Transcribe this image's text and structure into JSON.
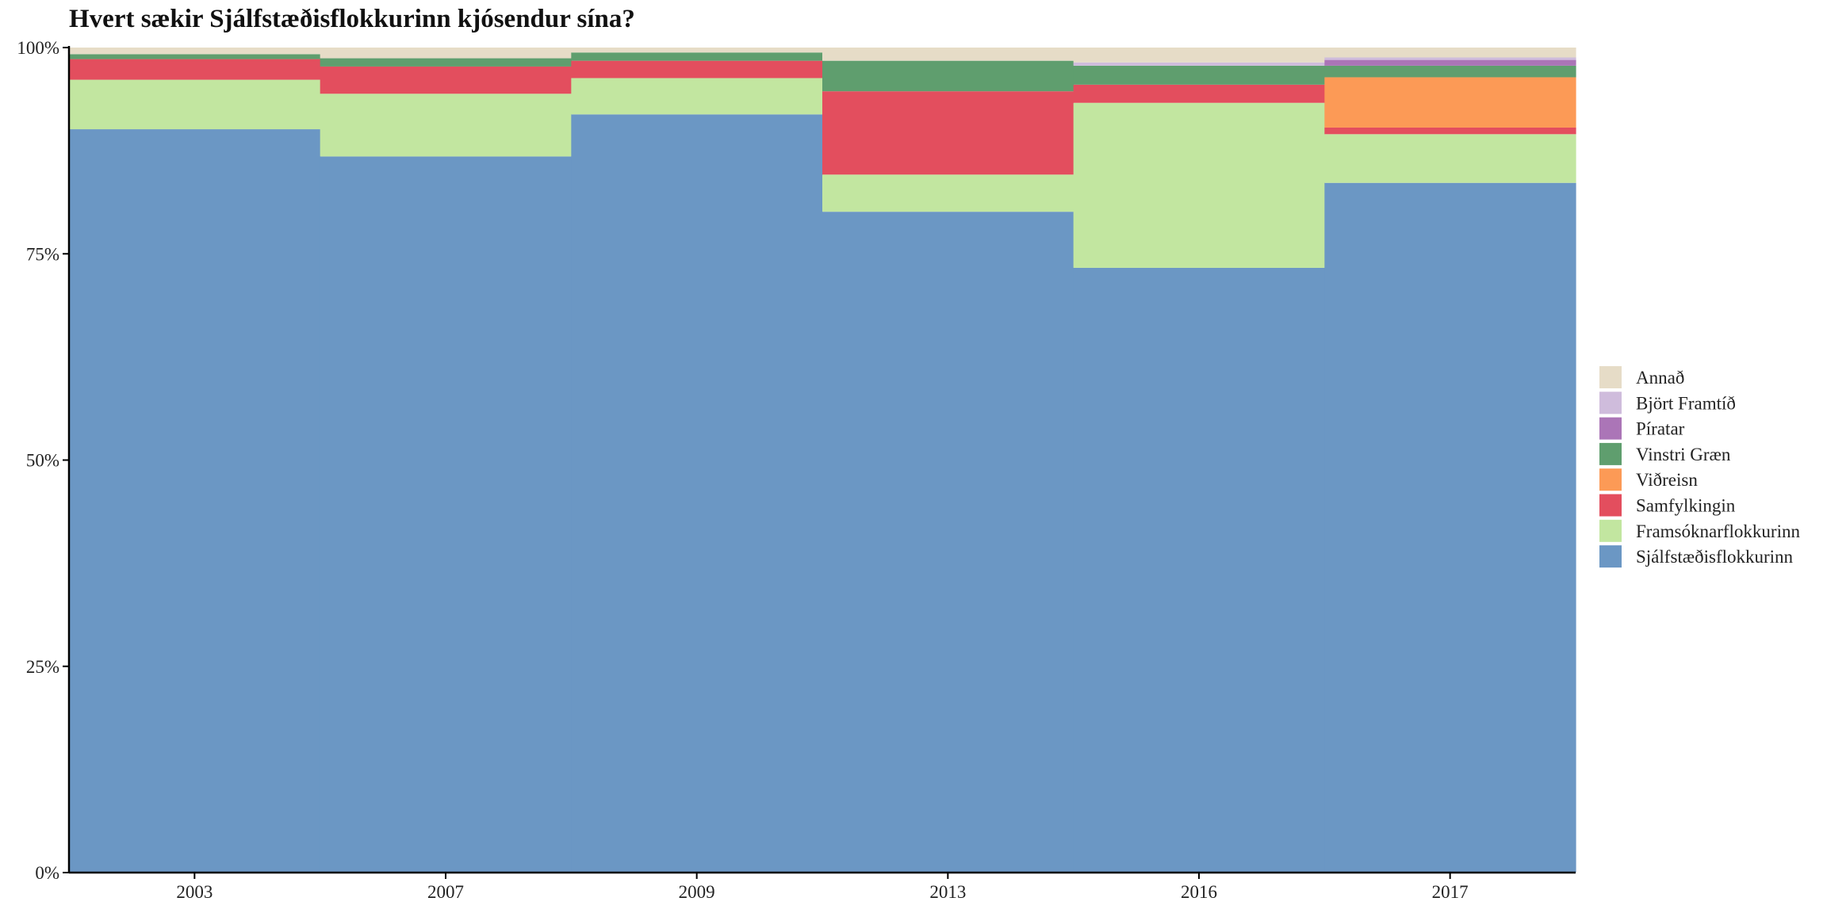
{
  "chart_data": {
    "type": "bar",
    "title": "Hvert sækir Sjálfstæðisflokkurinn kjósendur sína?",
    "xlabel": "",
    "ylabel": "",
    "ylim": [
      0,
      100
    ],
    "y_ticks": [
      "0%",
      "25%",
      "50%",
      "75%",
      "100%"
    ],
    "y_tick_values": [
      0,
      25,
      50,
      75,
      100
    ],
    "grid": false,
    "legend_position": "right",
    "categories": [
      "2003",
      "2007",
      "2009",
      "2013",
      "2016",
      "2017"
    ],
    "series": [
      {
        "name": "Sjálfstæðisflokkurinn",
        "color": "#6b97c4",
        "values": [
          90.1,
          86.8,
          91.9,
          80.1,
          73.3,
          83.6
        ]
      },
      {
        "name": "Framsóknarflokkurinn",
        "color": "#c2e6a0",
        "values": [
          6.0,
          7.6,
          4.4,
          4.5,
          20.0,
          5.9
        ]
      },
      {
        "name": "Samfylkingin",
        "color": "#e34e5e",
        "values": [
          2.5,
          3.3,
          2.1,
          10.1,
          2.2,
          0.8
        ]
      },
      {
        "name": "Viðreisn",
        "color": "#fc9a56",
        "values": [
          0,
          0,
          0,
          0,
          0,
          6.1
        ]
      },
      {
        "name": "Vinstri Græn",
        "color": "#5f9e6e",
        "values": [
          0.6,
          1.0,
          1.0,
          3.7,
          2.3,
          1.4
        ]
      },
      {
        "name": "Píratar",
        "color": "#ab75b7",
        "values": [
          0,
          0,
          0,
          0,
          0,
          0.7
        ]
      },
      {
        "name": "Björt Framtíð",
        "color": "#cfbcdc",
        "values": [
          0,
          0,
          0,
          0,
          0.4,
          0.3
        ]
      },
      {
        "name": "Annað",
        "color": "#e6dcc7",
        "values": [
          0.8,
          1.3,
          0.6,
          1.6,
          1.8,
          1.2
        ]
      }
    ]
  }
}
